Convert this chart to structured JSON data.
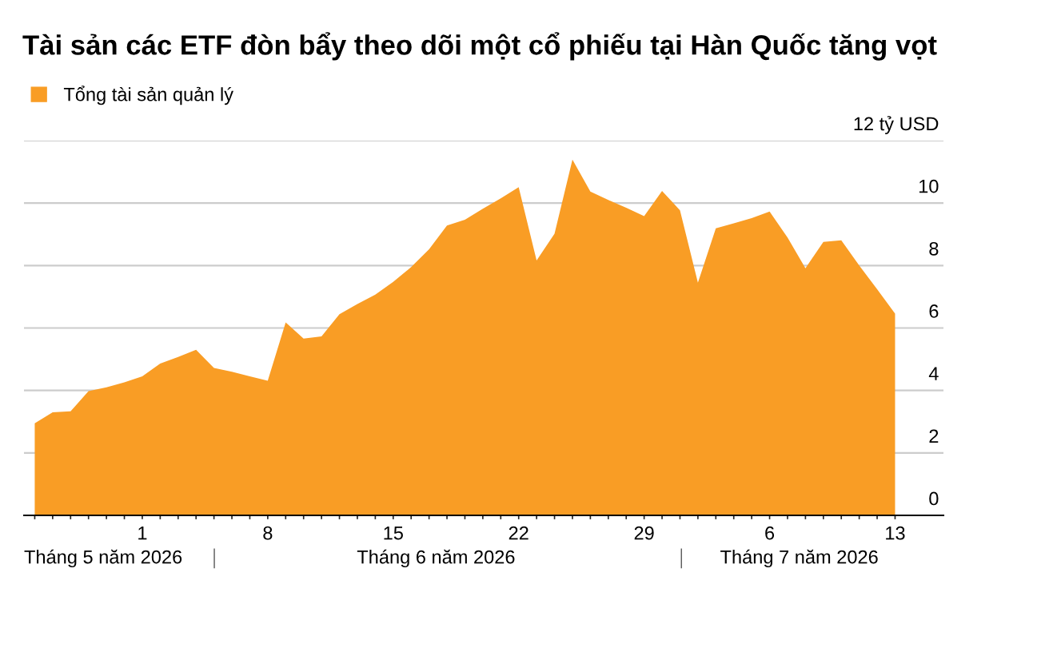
{
  "chart_data": {
    "type": "area",
    "title": "Tài sản các ETF đòn bẩy theo dõi một cổ phiếu tại Hàn Quốc tăng vọt",
    "x": [
      "2026-05-26",
      "2026-05-27",
      "2026-05-28",
      "2026-05-29",
      "2026-05-30",
      "2026-05-31",
      "2026-06-01",
      "2026-06-02",
      "2026-06-03",
      "2026-06-04",
      "2026-06-05",
      "2026-06-06",
      "2026-06-07",
      "2026-06-08",
      "2026-06-09",
      "2026-06-10",
      "2026-06-11",
      "2026-06-12",
      "2026-06-13",
      "2026-06-14",
      "2026-06-15",
      "2026-06-16",
      "2026-06-17",
      "2026-06-18",
      "2026-06-19",
      "2026-06-20",
      "2026-06-21",
      "2026-06-22",
      "2026-06-23",
      "2026-06-24",
      "2026-06-25",
      "2026-06-26",
      "2026-06-27",
      "2026-06-28",
      "2026-06-29",
      "2026-06-30",
      "2026-07-01",
      "2026-07-02",
      "2026-07-03",
      "2026-07-04",
      "2026-07-05",
      "2026-07-06",
      "2026-07-07",
      "2026-07-08",
      "2026-07-09",
      "2026-07-10",
      "2026-07-11",
      "2026-07-12",
      "2026-07-13"
    ],
    "series": [
      {
        "name": "Tổng tài sản quản lý",
        "color": "#f99d25",
        "values": [
          2.95,
          3.3,
          3.33,
          3.98,
          4.1,
          4.26,
          4.45,
          4.86,
          5.07,
          5.3,
          4.72,
          4.6,
          4.45,
          4.31,
          6.18,
          5.66,
          5.73,
          6.44,
          6.77,
          7.07,
          7.48,
          7.95,
          8.52,
          9.28,
          9.47,
          9.82,
          10.15,
          10.51,
          8.16,
          9.02,
          11.39,
          10.37,
          10.1,
          9.85,
          9.58,
          10.39,
          9.77,
          7.45,
          9.19,
          9.35,
          9.52,
          9.73,
          8.9,
          7.91,
          8.76,
          8.81,
          8.0,
          7.24,
          6.46
        ]
      }
    ],
    "xlim": [
      "2026-05-25T09:36",
      "2026-07-15T16:48"
    ],
    "xticks": [
      {
        "value": "2026-05-26",
        "label": null
      },
      {
        "value": "2026-05-27",
        "label": null
      },
      {
        "value": "2026-05-28",
        "label": null
      },
      {
        "value": "2026-05-29",
        "label": null
      },
      {
        "value": "2026-05-30",
        "label": null
      },
      {
        "value": "2026-05-31",
        "label": null
      },
      {
        "value": "2026-06-01",
        "label": "1"
      },
      {
        "value": "2026-06-02",
        "label": null
      },
      {
        "value": "2026-06-03",
        "label": null
      },
      {
        "value": "2026-06-04",
        "label": null
      },
      {
        "value": "2026-06-05",
        "label": null
      },
      {
        "value": "2026-06-06",
        "label": null
      },
      {
        "value": "2026-06-07",
        "label": null
      },
      {
        "value": "2026-06-08",
        "label": "8"
      },
      {
        "value": "2026-06-09",
        "label": null
      },
      {
        "value": "2026-06-10",
        "label": null
      },
      {
        "value": "2026-06-11",
        "label": null
      },
      {
        "value": "2026-06-12",
        "label": null
      },
      {
        "value": "2026-06-13",
        "label": null
      },
      {
        "value": "2026-06-14",
        "label": null
      },
      {
        "value": "2026-06-15",
        "label": "15"
      },
      {
        "value": "2026-06-16",
        "label": null
      },
      {
        "value": "2026-06-17",
        "label": null
      },
      {
        "value": "2026-06-18",
        "label": null
      },
      {
        "value": "2026-06-19",
        "label": null
      },
      {
        "value": "2026-06-20",
        "label": null
      },
      {
        "value": "2026-06-21",
        "label": null
      },
      {
        "value": "2026-06-22",
        "label": "22"
      },
      {
        "value": "2026-06-23",
        "label": null
      },
      {
        "value": "2026-06-24",
        "label": null
      },
      {
        "value": "2026-06-25",
        "label": null
      },
      {
        "value": "2026-06-26",
        "label": null
      },
      {
        "value": "2026-06-27",
        "label": null
      },
      {
        "value": "2026-06-28",
        "label": null
      },
      {
        "value": "2026-06-29",
        "label": "29"
      },
      {
        "value": "2026-06-30",
        "label": null
      },
      {
        "value": "2026-07-01",
        "label": null
      },
      {
        "value": "2026-07-02",
        "label": null
      },
      {
        "value": "2026-07-03",
        "label": null
      },
      {
        "value": "2026-07-04",
        "label": null
      },
      {
        "value": "2026-07-05",
        "label": null
      },
      {
        "value": "2026-07-06",
        "label": "6"
      },
      {
        "value": "2026-07-07",
        "label": null
      },
      {
        "value": "2026-07-08",
        "label": null
      },
      {
        "value": "2026-07-09",
        "label": null
      },
      {
        "value": "2026-07-10",
        "label": null
      },
      {
        "value": "2026-07-11",
        "label": null
      },
      {
        "value": "2026-07-12",
        "label": null
      },
      {
        "value": "2026-07-13",
        "label": "13"
      }
    ],
    "ylim": [
      0,
      12
    ],
    "yticks": [
      0,
      2,
      4,
      6,
      8,
      10,
      {
        "value": 12,
        "label": "12 tỷ USD"
      }
    ],
    "grid": "y",
    "legend": "top left",
    "annotations": [
      "Tháng 5 năm 2026",
      "Tháng 6 năm 2026",
      "Tháng 7 năm 2026"
    ]
  }
}
